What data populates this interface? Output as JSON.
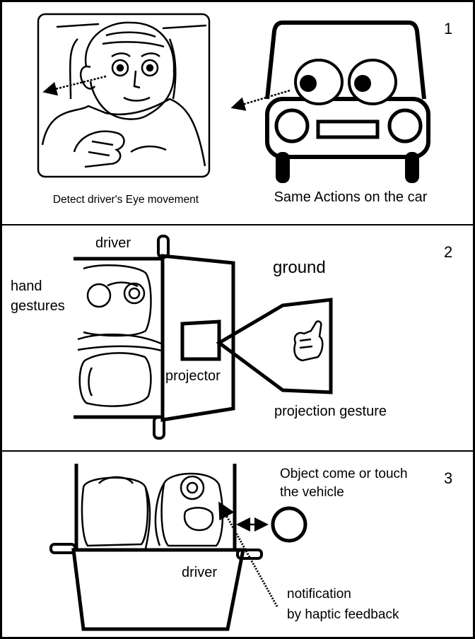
{
  "panel1": {
    "number": "1",
    "left_caption": "Detect driver's Eye movement",
    "right_caption": "Same Actions on the car"
  },
  "panel2": {
    "number": "2",
    "driver_label": "driver",
    "hand_label_line1": "hand",
    "hand_label_line2": "gestures",
    "ground_label": "ground",
    "projector_label": "projector",
    "projection_label": "projection gesture"
  },
  "panel3": {
    "number": "3",
    "object_label_line1": "Object come or touch",
    "object_label_line2": "the vehicle",
    "driver_label": "driver",
    "notification_line1": "notification",
    "notification_line2": "by haptic feedback"
  }
}
